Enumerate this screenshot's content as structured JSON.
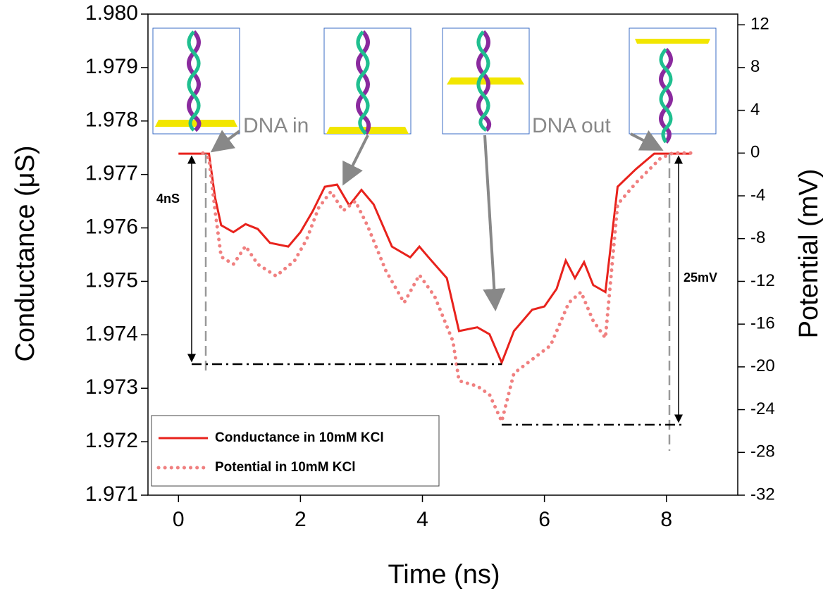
{
  "chart_data": {
    "type": "line",
    "x_label": "Time (ns)",
    "y_label": "Conductance (μS)",
    "y2_label": "Potential (mV)",
    "xlim": [
      -0.5,
      9.17
    ],
    "xticks": [
      0,
      2,
      4,
      6,
      8
    ],
    "ylim": [
      1.971,
      1.98
    ],
    "yticks": [
      1.971,
      1.972,
      1.973,
      1.974,
      1.975,
      1.976,
      1.977,
      1.978,
      1.979,
      {
        "value": 1.98,
        "label": "1.980"
      }
    ],
    "y2lim": [
      -32,
      13
    ],
    "y2ticks": [
      -32,
      -28,
      -24,
      -20,
      -16,
      -12,
      -8,
      -4,
      0,
      4,
      8,
      12
    ],
    "legend": "lower left",
    "series": [
      {
        "name": "Conductance in 10mM KCl",
        "color": "#e8221c",
        "style": "solid",
        "x": [
          0,
          0.5,
          0.6,
          0.7,
          0.9,
          1.1,
          1.3,
          1.5,
          1.8,
          2.0,
          2.2,
          2.4,
          2.6,
          2.8,
          3.0,
          3.2,
          3.5,
          3.8,
          3.95,
          4.1,
          4.4,
          4.6,
          4.9,
          5.1,
          5.3,
          5.5,
          5.8,
          6.0,
          6.2,
          6.35,
          6.5,
          6.65,
          6.8,
          7.0,
          7.2,
          7.5,
          7.8,
          8.4
        ],
        "values": [
          1.97739,
          1.97739,
          1.97657,
          1.97605,
          1.97592,
          1.97607,
          1.97598,
          1.97572,
          1.97565,
          1.97592,
          1.97631,
          1.97677,
          1.97681,
          1.97642,
          1.97671,
          1.97644,
          1.97565,
          1.97545,
          1.97565,
          1.97545,
          1.97506,
          1.97407,
          1.97414,
          1.97401,
          1.97348,
          1.97407,
          1.97447,
          1.97453,
          1.97486,
          1.97539,
          1.97506,
          1.97536,
          1.97493,
          1.9748,
          1.97677,
          1.9771,
          1.97739,
          1.97739
        ]
      },
      {
        "name": "Potential in 10mM KCl",
        "color": "#f08080",
        "style": "dotted",
        "axis": "y2",
        "x": [
          0.4,
          0.5,
          0.6,
          0.7,
          0.9,
          1.1,
          1.3,
          1.6,
          1.9,
          2.1,
          2.3,
          2.5,
          2.7,
          2.9,
          3.1,
          3.4,
          3.7,
          3.95,
          4.2,
          4.5,
          4.6,
          4.9,
          5.1,
          5.3,
          5.5,
          5.8,
          6.1,
          6.4,
          6.6,
          6.8,
          7.0,
          7.2,
          7.5,
          7.9,
          8.1,
          8.4
        ],
        "values": [
          0,
          -0.5,
          -5.4,
          -9.7,
          -10.4,
          -8.7,
          -10.4,
          -11.5,
          -10.1,
          -8.1,
          -5.1,
          -3.6,
          -5.4,
          -4.5,
          -6.8,
          -11,
          -14,
          -11.4,
          -13.4,
          -17.6,
          -21.3,
          -21.8,
          -22.6,
          -25.1,
          -20.6,
          -19.3,
          -18,
          -14,
          -13,
          -15.7,
          -17.3,
          -4.8,
          -2.8,
          -0.5,
          0,
          0
        ]
      }
    ],
    "annotations": [
      "DNA in",
      "DNA out",
      "4nS",
      "25mV"
    ]
  }
}
